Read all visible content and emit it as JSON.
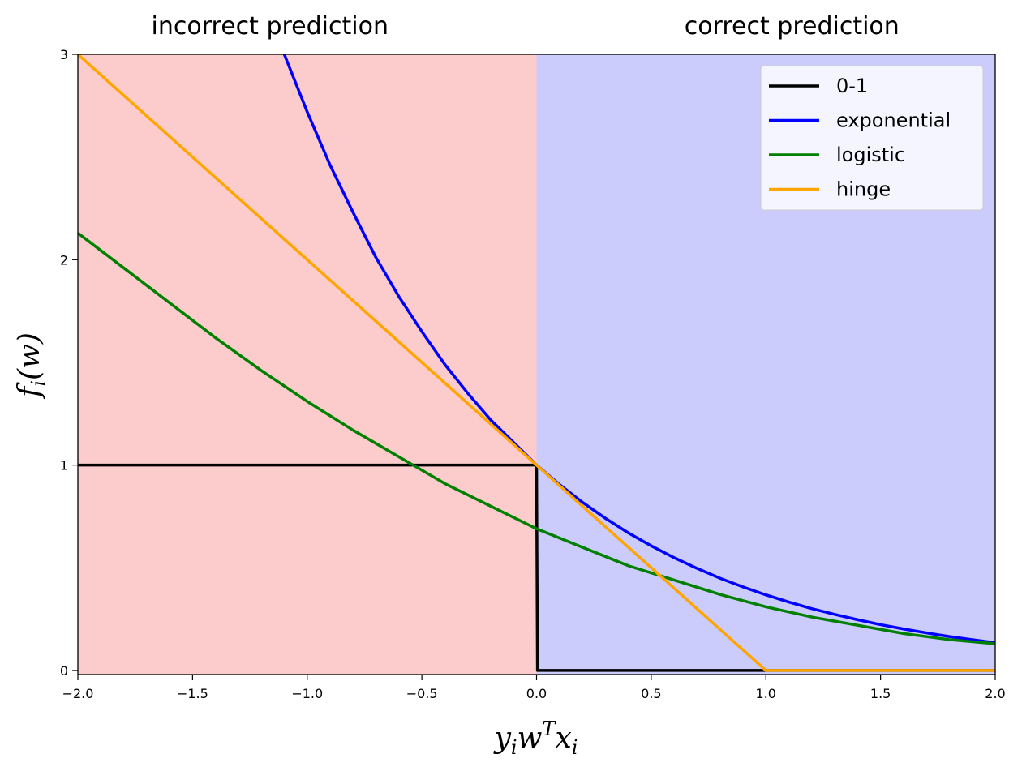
{
  "chart_data": {
    "type": "line",
    "xlabel": "y_i w^T x_i",
    "ylabel": "f_i(w)",
    "xlim": [
      -2.0,
      2.0
    ],
    "ylim": [
      -0.02,
      3.0
    ],
    "x_ticks": [
      -2.0,
      -1.5,
      -1.0,
      -0.5,
      0.0,
      0.5,
      1.0,
      1.5,
      2.0
    ],
    "x_tick_labels": [
      "−2.0",
      "−1.5",
      "−1.0",
      "−0.5",
      "0.0",
      "0.5",
      "1.0",
      "1.5",
      "2.0"
    ],
    "y_ticks": [
      0,
      1,
      2,
      3
    ],
    "y_tick_labels": [
      "0",
      "1",
      "2",
      "3"
    ],
    "grid": false,
    "legend_position": "top-right",
    "regions": [
      {
        "label": "incorrect prediction",
        "x_range": [
          -2.0,
          0.0
        ],
        "color": "#fccbcb"
      },
      {
        "label": "correct prediction",
        "x_range": [
          0.0,
          2.0
        ],
        "color": "#cbcbfc"
      }
    ],
    "series": [
      {
        "name": "0-1",
        "color": "#000000",
        "x": [
          -2.0,
          0.0,
          0.0,
          2.0
        ],
        "y": [
          1,
          1,
          0,
          0
        ]
      },
      {
        "name": "exponential",
        "color": "#0000ff",
        "x": [
          -1.1,
          -1.0,
          -0.9,
          -0.8,
          -0.7,
          -0.6,
          -0.5,
          -0.4,
          -0.3,
          -0.2,
          -0.1,
          0.0,
          0.1,
          0.2,
          0.3,
          0.4,
          0.5,
          0.6,
          0.7,
          0.8,
          0.9,
          1.0,
          1.1,
          1.2,
          1.3,
          1.4,
          1.5,
          1.6,
          1.7,
          1.8,
          1.9,
          2.0
        ],
        "y": [
          3.0,
          2.72,
          2.46,
          2.23,
          2.01,
          1.82,
          1.65,
          1.49,
          1.35,
          1.22,
          1.11,
          1.0,
          0.905,
          0.819,
          0.741,
          0.67,
          0.607,
          0.549,
          0.497,
          0.449,
          0.407,
          0.368,
          0.333,
          0.301,
          0.273,
          0.247,
          0.223,
          0.202,
          0.183,
          0.165,
          0.15,
          0.135
        ]
      },
      {
        "name": "logistic",
        "color": "#008000",
        "x": [
          -2.0,
          -1.8,
          -1.6,
          -1.4,
          -1.2,
          -1.0,
          -0.8,
          -0.6,
          -0.4,
          -0.2,
          0.0,
          0.2,
          0.4,
          0.6,
          0.8,
          1.0,
          1.2,
          1.4,
          1.6,
          1.8,
          2.0
        ],
        "y": [
          2.13,
          1.96,
          1.79,
          1.62,
          1.46,
          1.31,
          1.17,
          1.04,
          0.91,
          0.8,
          0.69,
          0.6,
          0.51,
          0.44,
          0.37,
          0.31,
          0.26,
          0.22,
          0.18,
          0.15,
          0.13
        ]
      },
      {
        "name": "hinge",
        "color": "#ffa500",
        "x": [
          -2.0,
          1.0,
          2.0
        ],
        "y": [
          3.0,
          0.0,
          0.0
        ]
      }
    ],
    "annotations": [
      "incorrect prediction",
      "correct prediction"
    ]
  }
}
